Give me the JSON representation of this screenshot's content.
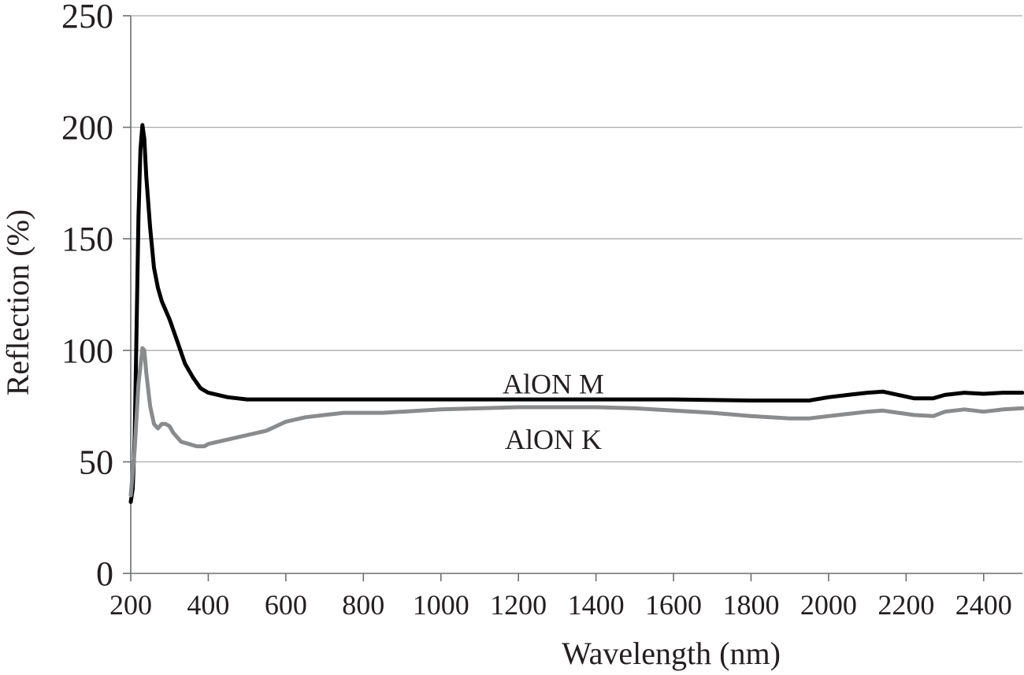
{
  "chart_data": {
    "type": "line",
    "title": "",
    "xlabel": "Wavelength (nm)",
    "ylabel": "Reflection (%)",
    "xlim": [
      200,
      2500
    ],
    "ylim": [
      0,
      250
    ],
    "xticks": [
      200,
      400,
      600,
      800,
      1000,
      1200,
      1400,
      1600,
      1800,
      2000,
      2200,
      2400
    ],
    "yticks": [
      0,
      50,
      100,
      150,
      200,
      250
    ],
    "grid": "horizontal",
    "legend": "none",
    "series": [
      {
        "name": "AlON M",
        "color": "#000000",
        "points": [
          [
            200,
            32
          ],
          [
            205,
            38
          ],
          [
            210,
            60
          ],
          [
            215,
            110
          ],
          [
            220,
            160
          ],
          [
            225,
            190
          ],
          [
            230,
            201
          ],
          [
            235,
            195
          ],
          [
            240,
            178
          ],
          [
            250,
            155
          ],
          [
            260,
            137
          ],
          [
            270,
            128
          ],
          [
            280,
            122
          ],
          [
            300,
            114
          ],
          [
            320,
            104
          ],
          [
            340,
            94
          ],
          [
            360,
            88
          ],
          [
            380,
            83
          ],
          [
            400,
            81
          ],
          [
            450,
            79
          ],
          [
            500,
            78
          ],
          [
            600,
            78
          ],
          [
            700,
            78
          ],
          [
            800,
            78
          ],
          [
            900,
            78
          ],
          [
            1000,
            78
          ],
          [
            1200,
            78
          ],
          [
            1400,
            78
          ],
          [
            1600,
            78
          ],
          [
            1800,
            77.5
          ],
          [
            1900,
            77.5
          ],
          [
            1950,
            77.5
          ],
          [
            2000,
            79
          ],
          [
            2050,
            80
          ],
          [
            2100,
            81
          ],
          [
            2140,
            81.5
          ],
          [
            2180,
            80
          ],
          [
            2220,
            78.5
          ],
          [
            2270,
            78.5
          ],
          [
            2300,
            80
          ],
          [
            2350,
            81
          ],
          [
            2400,
            80.5
          ],
          [
            2450,
            81
          ],
          [
            2500,
            81
          ]
        ]
      },
      {
        "name": "AlON K",
        "color": "#8a8b8d",
        "points": [
          [
            200,
            35
          ],
          [
            210,
            55
          ],
          [
            220,
            85
          ],
          [
            230,
            101
          ],
          [
            235,
            100
          ],
          [
            240,
            90
          ],
          [
            250,
            75
          ],
          [
            260,
            67
          ],
          [
            270,
            65
          ],
          [
            280,
            67
          ],
          [
            290,
            67
          ],
          [
            300,
            66
          ],
          [
            310,
            63
          ],
          [
            330,
            59
          ],
          [
            350,
            58
          ],
          [
            370,
            57
          ],
          [
            390,
            57
          ],
          [
            400,
            58
          ],
          [
            450,
            60
          ],
          [
            500,
            62
          ],
          [
            550,
            64
          ],
          [
            600,
            68
          ],
          [
            650,
            70
          ],
          [
            700,
            71
          ],
          [
            750,
            72
          ],
          [
            800,
            72
          ],
          [
            850,
            72
          ],
          [
            900,
            72.5
          ],
          [
            1000,
            73.5
          ],
          [
            1100,
            74
          ],
          [
            1200,
            74.5
          ],
          [
            1300,
            74.5
          ],
          [
            1400,
            74.5
          ],
          [
            1500,
            74
          ],
          [
            1600,
            73
          ],
          [
            1700,
            72
          ],
          [
            1800,
            70.5
          ],
          [
            1900,
            69.5
          ],
          [
            1950,
            69.5
          ],
          [
            2000,
            70.5
          ],
          [
            2050,
            71.5
          ],
          [
            2100,
            72.5
          ],
          [
            2140,
            73
          ],
          [
            2180,
            72
          ],
          [
            2220,
            71
          ],
          [
            2270,
            70.5
          ],
          [
            2300,
            72.5
          ],
          [
            2350,
            73.5
          ],
          [
            2400,
            72.5
          ],
          [
            2450,
            73.5
          ],
          [
            2500,
            74
          ]
        ]
      }
    ],
    "annotations": [
      {
        "text": "AlON M",
        "x": 1290,
        "y": 80
      },
      {
        "text": "AlON K",
        "x": 1290,
        "y": 60
      }
    ]
  }
}
